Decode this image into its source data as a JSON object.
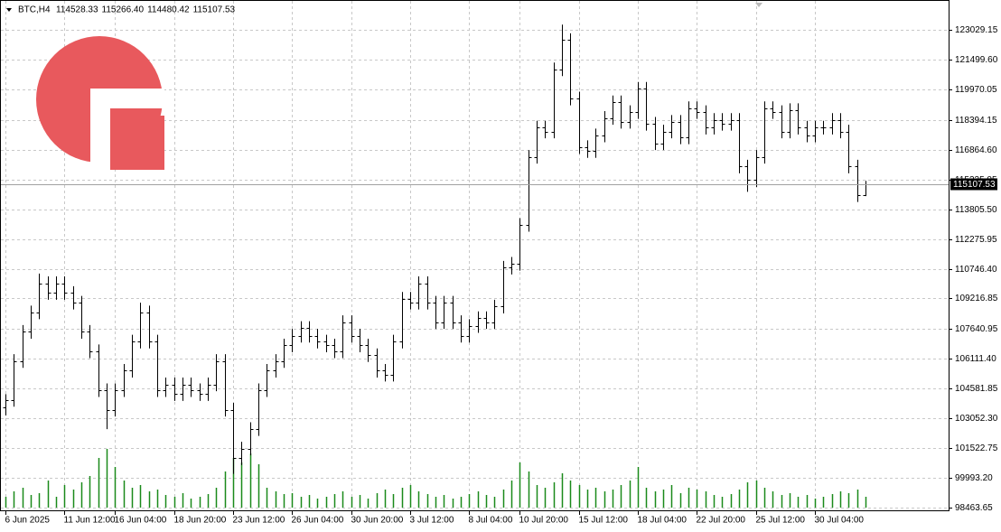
{
  "chart_data": {
    "type": "ohlc",
    "symbol": "BTC,H4",
    "ohlc_labels": [
      "114528.33",
      "115266.40",
      "114480.42",
      "115107.53"
    ],
    "color": "#000000",
    "volume_color": "#1a8a1a",
    "grid": true,
    "ylim": [
      98277,
      124332
    ],
    "yticks": [
      {
        "value": 123029.15,
        "label": "123029.15"
      },
      {
        "value": 121499.6,
        "label": "121499.60"
      },
      {
        "value": 119970.05,
        "label": "119970.05"
      },
      {
        "value": 118394.15,
        "label": "118394.15"
      },
      {
        "value": 116864.6,
        "label": "116864.60"
      },
      {
        "value": 115335.05,
        "label": "115335.05"
      },
      {
        "value": 113805.5,
        "label": "113805.50"
      },
      {
        "value": 112275.95,
        "label": "112275.95"
      },
      {
        "value": 110746.4,
        "label": "110746.40"
      },
      {
        "value": 109216.85,
        "label": "109216.85"
      },
      {
        "value": 107640.95,
        "label": "107640.95"
      },
      {
        "value": 106111.4,
        "label": "106111.40"
      },
      {
        "value": 104581.85,
        "label": "104581.85"
      },
      {
        "value": 103052.3,
        "label": "103052.30"
      },
      {
        "value": 101522.75,
        "label": "101522.75"
      },
      {
        "value": 99993.2,
        "label": "99993.20"
      },
      {
        "value": 98463.65,
        "label": "98463.65"
      }
    ],
    "xticks": [
      {
        "value": 0,
        "label": "6 Jun 2025"
      },
      {
        "value": 7,
        "label": "11 Jun 12:00"
      },
      {
        "value": 13,
        "label": "16 Jun 04:00"
      },
      {
        "value": 20,
        "label": "18 Jun 20:00"
      },
      {
        "value": 27,
        "label": "23 Jun 12:00"
      },
      {
        "value": 34,
        "label": "26 Jun 04:00"
      },
      {
        "value": 41,
        "label": "30 Jun 20:00"
      },
      {
        "value": 48,
        "label": "3 Jul 12:00"
      },
      {
        "value": 55,
        "label": "8 Jul 04:00"
      },
      {
        "value": 61,
        "label": "10 Jul 20:00"
      },
      {
        "value": 68,
        "label": "15 Jul 12:00"
      },
      {
        "value": 75,
        "label": "18 Jul 04:00"
      },
      {
        "value": 82,
        "label": "22 Jul 20:00"
      },
      {
        "value": 89,
        "label": "25 Jul 12:00"
      },
      {
        "value": 96,
        "label": "30 Jul 04:00"
      }
    ],
    "bars": [
      [
        103600,
        104300,
        103200,
        104000
      ],
      [
        104000,
        106350,
        103650,
        106000
      ],
      [
        106000,
        107850,
        105650,
        107500
      ],
      [
        107500,
        108850,
        107150,
        108500
      ],
      [
        108500,
        110500,
        108150,
        110000
      ],
      [
        110000,
        110350,
        109150,
        109500
      ],
      [
        109500,
        110350,
        109150,
        110000
      ],
      [
        110000,
        110350,
        109150,
        109500
      ],
      [
        109500,
        109850,
        108650,
        109000
      ],
      [
        109000,
        109350,
        107150,
        107500
      ],
      [
        107500,
        107850,
        106150,
        106500
      ],
      [
        106500,
        106850,
        104150,
        104500
      ],
      [
        104500,
        104850,
        102500,
        103500
      ],
      [
        103500,
        104850,
        103150,
        104500
      ],
      [
        104500,
        105850,
        104150,
        105500
      ],
      [
        105500,
        107350,
        105150,
        107000
      ],
      [
        107000,
        109000,
        106650,
        108500
      ],
      [
        108500,
        108850,
        106650,
        107000
      ],
      [
        107000,
        107350,
        104150,
        104500
      ],
      [
        104500,
        105150,
        104150,
        104800
      ],
      [
        104800,
        105150,
        103950,
        104300
      ],
      [
        104300,
        105150,
        103950,
        104800
      ],
      [
        104800,
        105150,
        104150,
        104500
      ],
      [
        104500,
        104850,
        103950,
        104300
      ],
      [
        104300,
        105150,
        103950,
        104800
      ],
      [
        104800,
        106350,
        104450,
        106000
      ],
      [
        106000,
        106350,
        103150,
        103500
      ],
      [
        103500,
        103850,
        100200,
        101000
      ],
      [
        101000,
        101850,
        100650,
        101500
      ],
      [
        101500,
        102850,
        101150,
        102500
      ],
      [
        102500,
        104850,
        102150,
        104500
      ],
      [
        104500,
        105850,
        104150,
        105500
      ],
      [
        105500,
        106350,
        105150,
        106000
      ],
      [
        106000,
        107150,
        105650,
        106800
      ],
      [
        106800,
        107650,
        106450,
        107300
      ],
      [
        107300,
        108050,
        106950,
        107700
      ],
      [
        107700,
        108050,
        106950,
        107300
      ],
      [
        107300,
        107650,
        106650,
        107000
      ],
      [
        107000,
        107350,
        106450,
        106800
      ],
      [
        106800,
        107150,
        106150,
        106500
      ],
      [
        106500,
        108350,
        106150,
        108000
      ],
      [
        108000,
        108350,
        106950,
        107300
      ],
      [
        107300,
        107650,
        106450,
        106800
      ],
      [
        106800,
        107150,
        105950,
        106300
      ],
      [
        106300,
        106650,
        105150,
        105500
      ],
      [
        105500,
        105850,
        104950,
        105300
      ],
      [
        105300,
        107350,
        104950,
        107000
      ],
      [
        107000,
        109550,
        106650,
        109200
      ],
      [
        109200,
        109550,
        108650,
        109000
      ],
      [
        109000,
        110350,
        108650,
        110000
      ],
      [
        110000,
        110350,
        108650,
        109000
      ],
      [
        109000,
        109350,
        107650,
        108000
      ],
      [
        108000,
        109350,
        107650,
        109000
      ],
      [
        109000,
        109350,
        107650,
        108000
      ],
      [
        108000,
        108350,
        106950,
        107300
      ],
      [
        107300,
        108150,
        106950,
        107800
      ],
      [
        107800,
        108550,
        107450,
        108200
      ],
      [
        108200,
        108550,
        107650,
        108000
      ],
      [
        108000,
        109150,
        107650,
        108800
      ],
      [
        108800,
        111150,
        108450,
        110800
      ],
      [
        110800,
        111350,
        110450,
        111000
      ],
      [
        111000,
        113350,
        110650,
        113000
      ],
      [
        113000,
        116850,
        112650,
        116500
      ],
      [
        116500,
        118350,
        116150,
        118000
      ],
      [
        118000,
        118350,
        117450,
        117800
      ],
      [
        117800,
        121350,
        117450,
        121000
      ],
      [
        121000,
        123300,
        120650,
        122500
      ],
      [
        122500,
        122850,
        119150,
        119500
      ],
      [
        119500,
        119850,
        116650,
        117000
      ],
      [
        117000,
        117350,
        116450,
        116800
      ],
      [
        116800,
        117950,
        116450,
        117600
      ],
      [
        117600,
        118850,
        117250,
        118500
      ],
      [
        118500,
        119650,
        118150,
        119300
      ],
      [
        119300,
        119650,
        117950,
        118300
      ],
      [
        118300,
        119150,
        117950,
        118800
      ],
      [
        118800,
        120350,
        118450,
        120000
      ],
      [
        120000,
        120350,
        117850,
        118200
      ],
      [
        118200,
        118550,
        116850,
        117200
      ],
      [
        117200,
        118150,
        116850,
        117800
      ],
      [
        117800,
        118650,
        117450,
        118300
      ],
      [
        118300,
        118650,
        117150,
        117500
      ],
      [
        117500,
        119350,
        117150,
        119000
      ],
      [
        119000,
        119350,
        118450,
        118800
      ],
      [
        118800,
        119150,
        117650,
        118000
      ],
      [
        118000,
        118750,
        117650,
        118400
      ],
      [
        118400,
        118750,
        117850,
        118200
      ],
      [
        118200,
        118750,
        117850,
        118400
      ],
      [
        118400,
        118750,
        115650,
        116000
      ],
      [
        116000,
        116350,
        114700,
        115300
      ],
      [
        115300,
        116850,
        114950,
        116500
      ],
      [
        116500,
        119350,
        116150,
        119000
      ],
      [
        119000,
        119350,
        118450,
        118800
      ],
      [
        118800,
        119150,
        117450,
        117800
      ],
      [
        117800,
        119250,
        117450,
        118900
      ],
      [
        118900,
        119250,
        117650,
        118000
      ],
      [
        118000,
        118350,
        117250,
        117600
      ],
      [
        117600,
        118350,
        117250,
        118000
      ],
      [
        118000,
        118350,
        117650,
        118000
      ],
      [
        118000,
        118750,
        117650,
        118400
      ],
      [
        118400,
        118750,
        117450,
        117800
      ],
      [
        117800,
        118150,
        115650,
        116000
      ],
      [
        116000,
        116350,
        114178.33,
        114528.33
      ],
      [
        114528.33,
        115266.4,
        114480.42,
        115107.53
      ]
    ],
    "volume": [
      12,
      18,
      22,
      14,
      16,
      30,
      12,
      25,
      20,
      28,
      35,
      55,
      65,
      45,
      30,
      22,
      25,
      18,
      20,
      14,
      12,
      16,
      10,
      12,
      15,
      22,
      40,
      55,
      50,
      60,
      48,
      22,
      18,
      15,
      16,
      12,
      14,
      10,
      12,
      15,
      18,
      12,
      14,
      10,
      16,
      20,
      15,
      22,
      25,
      18,
      15,
      12,
      14,
      10,
      12,
      15,
      18,
      14,
      12,
      20,
      30,
      50,
      40,
      25,
      22,
      28,
      38,
      30,
      25,
      20,
      22,
      18,
      20,
      25,
      30,
      45,
      22,
      18,
      20,
      25,
      16,
      22,
      20,
      18,
      14,
      12,
      15,
      20,
      28,
      30,
      22,
      18,
      14,
      16,
      12,
      14,
      10,
      12,
      15,
      18,
      16,
      20,
      12
    ]
  }
}
